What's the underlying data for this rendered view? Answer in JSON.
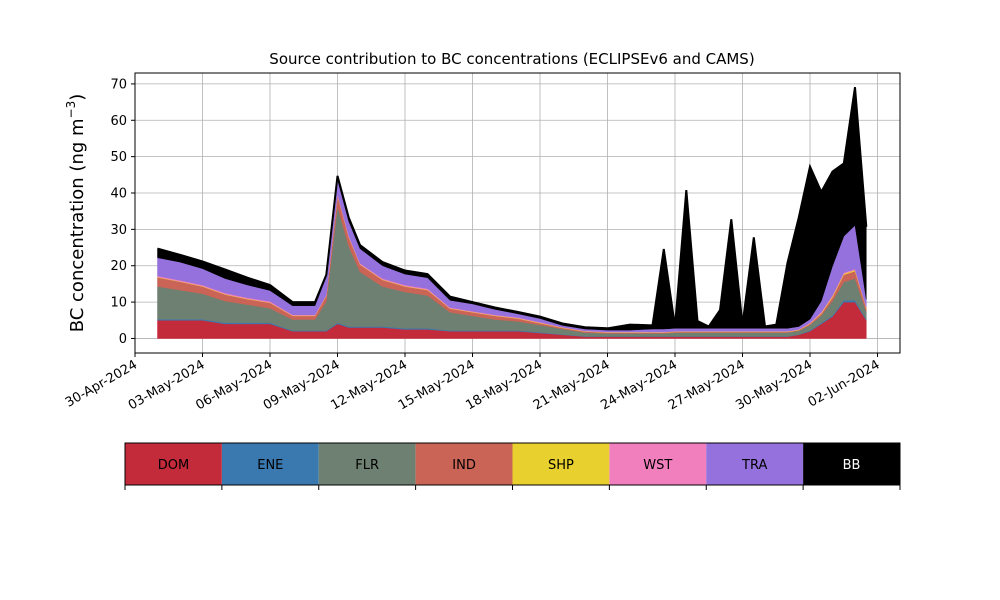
{
  "chart_data": {
    "type": "area",
    "stacked": true,
    "title": "Source contribution to BC concentrations (ECLIPSEv6 and CAMS)",
    "ylabel": "BC concentration (ng m",
    "ylabel_sup": "−3",
    "ylabel_close": ")",
    "ylim": [
      -4,
      73
    ],
    "yticks": [
      0,
      10,
      20,
      30,
      40,
      50,
      60,
      70
    ],
    "xlim": [
      "2024-04-30",
      "2024-06-03"
    ],
    "xticks": [
      "2024-04-30",
      "2024-05-03",
      "2024-05-06",
      "2024-05-09",
      "2024-05-12",
      "2024-05-15",
      "2024-05-18",
      "2024-05-21",
      "2024-05-24",
      "2024-05-27",
      "2024-05-30",
      "2024-06-02"
    ],
    "xtick_labels": [
      "30-Apr-2024",
      "03-May-2024",
      "06-May-2024",
      "09-May-2024",
      "12-May-2024",
      "15-May-2024",
      "18-May-2024",
      "21-May-2024",
      "24-May-2024",
      "27-May-2024",
      "30-May-2024",
      "02-Jun-2024"
    ],
    "grid": true,
    "x": [
      "2024-05-01",
      "2024-05-02",
      "2024-05-03",
      "2024-05-04",
      "2024-05-05",
      "2024-05-06",
      "2024-05-07",
      "2024-05-08",
      "2024-05-08T12:00",
      "2024-05-09",
      "2024-05-09T12:00",
      "2024-05-10",
      "2024-05-11",
      "2024-05-12",
      "2024-05-13",
      "2024-05-14",
      "2024-05-15",
      "2024-05-16",
      "2024-05-17",
      "2024-05-18",
      "2024-05-19",
      "2024-05-20",
      "2024-05-21",
      "2024-05-22",
      "2024-05-23",
      "2024-05-23T12:00",
      "2024-05-24",
      "2024-05-24T12:00",
      "2024-05-25",
      "2024-05-25T12:00",
      "2024-05-26",
      "2024-05-26T12:00",
      "2024-05-27",
      "2024-05-27T12:00",
      "2024-05-28",
      "2024-05-28T12:00",
      "2024-05-29",
      "2024-05-29T12:00",
      "2024-05-30",
      "2024-05-30T12:00",
      "2024-05-31",
      "2024-05-31T12:00",
      "2024-06-01",
      "2024-06-01T12:00"
    ],
    "series": [
      {
        "name": "DOM",
        "color": "#c42b3a",
        "values": [
          5,
          5,
          5,
          4,
          4,
          4,
          2,
          2,
          2,
          4,
          3,
          3,
          3,
          2.5,
          2.5,
          2,
          2,
          2,
          2,
          1.5,
          1,
          0.5,
          0.5,
          0.5,
          0.5,
          0.5,
          0.5,
          0.5,
          0.5,
          0.5,
          0.5,
          0.5,
          0.5,
          0.5,
          0.5,
          0.5,
          0.5,
          1,
          2,
          4,
          6,
          10,
          10,
          5
        ]
      },
      {
        "name": "ENE",
        "color": "#3a78b0",
        "values": [
          0.3,
          0.3,
          0.3,
          0.3,
          0.3,
          0.3,
          0.2,
          0.2,
          0.2,
          0.3,
          0.3,
          0.3,
          0.3,
          0.3,
          0.3,
          0.2,
          0.2,
          0.2,
          0.2,
          0.2,
          0.1,
          0.1,
          0.1,
          0.1,
          0.1,
          0.1,
          0.1,
          0.1,
          0.1,
          0.1,
          0.1,
          0.1,
          0.1,
          0.1,
          0.1,
          0.1,
          0.1,
          0.1,
          0.2,
          0.3,
          0.3,
          0.5,
          0.5,
          0.3
        ]
      },
      {
        "name": "FLR",
        "color": "#6e8071",
        "values": [
          9,
          8,
          7,
          6,
          5,
          4,
          3,
          3,
          8,
          32,
          22,
          15,
          11,
          10,
          9,
          5,
          4,
          3,
          2.5,
          2,
          1.5,
          1,
          0.8,
          0.8,
          0.8,
          0.8,
          1,
          1,
          1,
          1,
          1,
          1,
          1,
          1,
          1,
          1,
          1,
          1,
          1.5,
          2,
          4,
          5,
          6,
          2
        ]
      },
      {
        "name": "IND",
        "color": "#c96456",
        "values": [
          2.5,
          2.3,
          2,
          1.8,
          1.5,
          1.5,
          1,
          1,
          1.5,
          3,
          2.5,
          2,
          1.8,
          1.5,
          1.5,
          1,
          1,
          1,
          0.8,
          0.5,
          0.3,
          0.3,
          0.2,
          0.2,
          0.2,
          0.2,
          0.2,
          0.2,
          0.2,
          0.2,
          0.2,
          0.2,
          0.2,
          0.2,
          0.2,
          0.2,
          0.2,
          0.2,
          0.3,
          0.5,
          1,
          2,
          2,
          1
        ]
      },
      {
        "name": "SHP",
        "color": "#e8d02e",
        "values": [
          0.1,
          0.1,
          0.1,
          0.1,
          0.1,
          0.1,
          0.1,
          0.1,
          0.1,
          0.1,
          0.1,
          0.1,
          0.1,
          0.1,
          0.1,
          0.1,
          0.1,
          0.1,
          0.1,
          0.1,
          0.1,
          0.1,
          0.1,
          0.1,
          0.1,
          0.1,
          0.1,
          0.1,
          0.1,
          0.1,
          0.1,
          0.1,
          0.1,
          0.1,
          0.1,
          0.1,
          0.1,
          0.1,
          0.1,
          0.2,
          0.3,
          0.3,
          0.3,
          0.2
        ]
      },
      {
        "name": "WST",
        "color": "#f17fbe",
        "values": [
          0.3,
          0.3,
          0.3,
          0.3,
          0.3,
          0.3,
          0.2,
          0.2,
          0.2,
          0.3,
          0.3,
          0.3,
          0.3,
          0.3,
          0.3,
          0.2,
          0.2,
          0.2,
          0.2,
          0.2,
          0.1,
          0.1,
          0.1,
          0.1,
          0.1,
          0.1,
          0.1,
          0.1,
          0.1,
          0.1,
          0.1,
          0.1,
          0.1,
          0.1,
          0.1,
          0.1,
          0.1,
          0.1,
          0.2,
          0.3,
          0.3,
          0.3,
          0.3,
          0.2
        ]
      },
      {
        "name": "TRA",
        "color": "#9471dc",
        "values": [
          5,
          5,
          4.5,
          4,
          3.5,
          3,
          2.5,
          2.5,
          5,
          4,
          4,
          4,
          3.5,
          3,
          3,
          2,
          2,
          1.5,
          1,
          1,
          0.5,
          0.5,
          0.5,
          0.5,
          0.8,
          0.8,
          0.8,
          0.8,
          0.8,
          0.8,
          0.8,
          0.8,
          0.8,
          0.8,
          0.8,
          0.8,
          0.8,
          0.8,
          1,
          3,
          8,
          10,
          12,
          2
        ]
      },
      {
        "name": "BB",
        "color": "#000000",
        "values": [
          2.5,
          2,
          2,
          2.5,
          2,
          1.5,
          1,
          1,
          0.5,
          1,
          1,
          1,
          1,
          1,
          1,
          1,
          0.5,
          0.5,
          0.5,
          0.5,
          0.5,
          0.5,
          0.5,
          1.5,
          1,
          22,
          0.5,
          38,
          2,
          0.5,
          5,
          30,
          1,
          25,
          0.5,
          1,
          18,
          30,
          42,
          30,
          26,
          20,
          38,
          20
        ]
      }
    ]
  }
}
